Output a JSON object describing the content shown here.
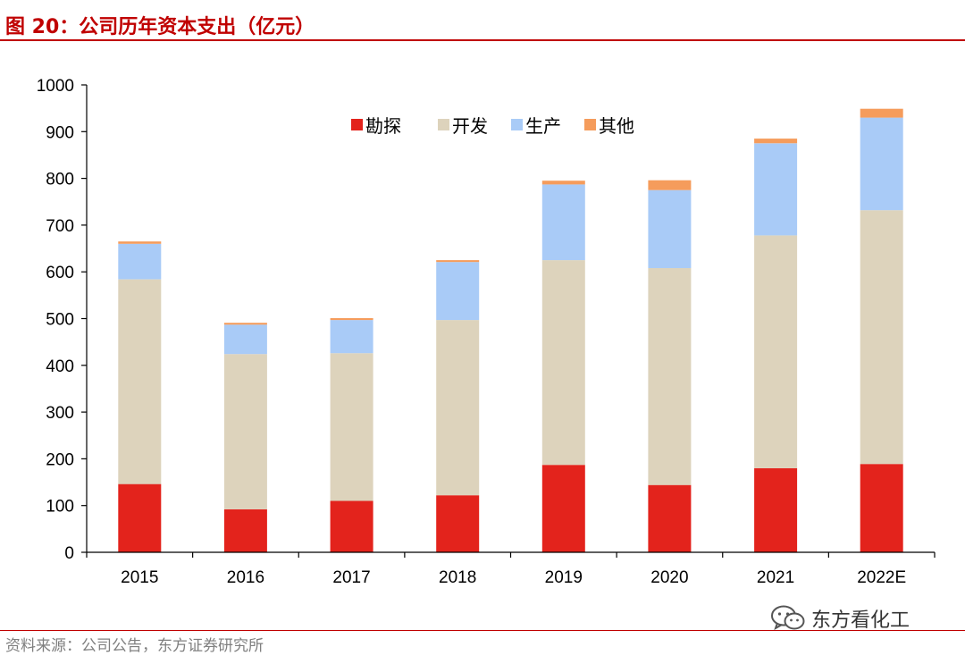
{
  "figure": {
    "title": "图 20：公司历年资本支出（亿元）",
    "source": "资料来源：公司公告，东方证券研究所",
    "watermark": "东方看化工"
  },
  "chart_data": {
    "type": "bar",
    "stacked": true,
    "title": "公司历年资本支出（亿元）",
    "xlabel": "",
    "ylabel": "",
    "ylim": [
      0,
      1000
    ],
    "yticks": [
      0,
      100,
      200,
      300,
      400,
      500,
      600,
      700,
      800,
      900,
      1000
    ],
    "grid": false,
    "legend_position": "top-center",
    "categories": [
      "2015",
      "2016",
      "2017",
      "2018",
      "2019",
      "2020",
      "2021",
      "2022E"
    ],
    "series": [
      {
        "name": "勘探",
        "color": "#e3231c",
        "values": [
          146,
          92,
          110,
          122,
          187,
          144,
          180,
          189
        ]
      },
      {
        "name": "开发",
        "color": "#ddd3bc",
        "values": [
          438,
          332,
          316,
          375,
          438,
          464,
          498,
          543
        ]
      },
      {
        "name": "生产",
        "color": "#a9cbf7",
        "values": [
          76,
          63,
          71,
          124,
          162,
          167,
          197,
          198
        ]
      },
      {
        "name": "其他",
        "color": "#f59c5c",
        "values": [
          5,
          4,
          4,
          4,
          8,
          21,
          10,
          19
        ]
      }
    ]
  }
}
